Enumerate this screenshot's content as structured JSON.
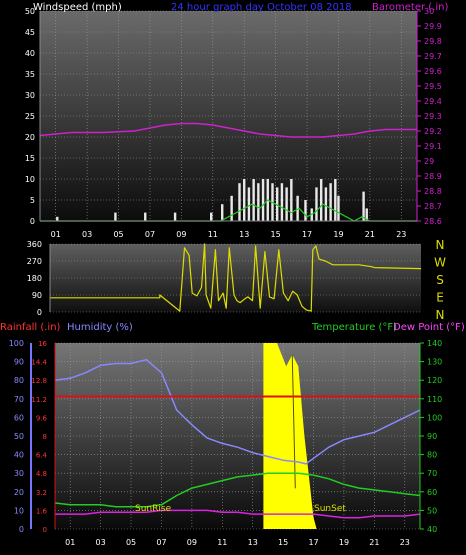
{
  "chart_data": [
    {
      "type": "line",
      "title": "24 hour graph day   October 08 2018",
      "left_axis_label": "Windspeed (mph)",
      "right_axis_label": "Barometer (.in)",
      "left_ticks": [
        "0",
        "5",
        "10",
        "15",
        "20",
        "25",
        "30",
        "35",
        "40",
        "45",
        "50"
      ],
      "right_ticks": [
        "28.6",
        "28.7",
        "28.8",
        "28.9",
        "29",
        "29.1",
        "29.2",
        "29.3",
        "29.4",
        "29.5",
        "29.6",
        "29.7",
        "29.8",
        "29.9",
        "30"
      ],
      "x_ticks": [
        "01",
        "03",
        "05",
        "07",
        "09",
        "11",
        "13",
        "15",
        "17",
        "19",
        "21",
        "23"
      ],
      "xlim": [
        0,
        24
      ],
      "ylim_left": [
        0,
        50
      ],
      "ylim_right": [
        28.6,
        30.0
      ],
      "series": [
        {
          "label": "barometer",
          "axis": "right",
          "color": "#cc22cc",
          "x": [
            0,
            2,
            4,
            6,
            8,
            9,
            10,
            11,
            12,
            13,
            14,
            15,
            16,
            17,
            18,
            19,
            20,
            21,
            22,
            23,
            24
          ],
          "y": [
            29.17,
            29.19,
            29.19,
            29.2,
            29.24,
            29.25,
            29.25,
            29.24,
            29.22,
            29.2,
            29.18,
            29.17,
            29.16,
            29.16,
            29.16,
            29.17,
            29.18,
            29.2,
            29.21,
            29.21,
            29.21
          ]
        },
        {
          "label": "windspeed_bars",
          "axis": "left",
          "color": "#e8e8e8",
          "x": [
            1.1,
            4.8,
            6.7,
            8.6,
            10.9,
            11.6,
            12.2,
            12.7,
            13.0,
            13.3,
            13.6,
            13.9,
            14.2,
            14.5,
            14.8,
            15.1,
            15.4,
            15.7,
            16.0,
            16.4,
            16.9,
            17.3,
            17.6,
            17.9,
            18.2,
            18.5,
            18.8,
            19.0,
            20.6,
            20.8
          ],
          "y": [
            1,
            2,
            2,
            2,
            2,
            4,
            6,
            9,
            10,
            8,
            10,
            9,
            10,
            10,
            9,
            8,
            9,
            8,
            10,
            6,
            5,
            3,
            8,
            10,
            8,
            9,
            10,
            6,
            7,
            3
          ]
        },
        {
          "label": "average_wind",
          "axis": "left",
          "color": "#22cc22",
          "x": [
            0,
            11.5,
            12,
            12.5,
            13,
            13.5,
            14,
            14.5,
            15,
            15.5,
            16,
            16.5,
            17,
            17.5,
            18,
            18.5,
            19,
            19.5,
            20,
            20.5,
            21,
            24
          ],
          "y": [
            0,
            0,
            1,
            2,
            3,
            4,
            3,
            5,
            4,
            3,
            2,
            3,
            1,
            2,
            4,
            3,
            2,
            1,
            0,
            1,
            0,
            0
          ]
        }
      ]
    },
    {
      "type": "line",
      "left_ticks": [
        "0",
        "90",
        "180",
        "270",
        "360"
      ],
      "compass_labels": [
        "N",
        "W",
        "S",
        "E",
        "N"
      ],
      "x_ticks": [],
      "xlim": [
        0,
        24
      ],
      "ylim": [
        0,
        360
      ],
      "series": [
        {
          "label": "wind_direction",
          "color": "#dddd00",
          "x": [
            0,
            7.1,
            7.1,
            8.4,
            8.7,
            9.0,
            9.2,
            9.5,
            9.8,
            10.0,
            10.1,
            10.4,
            10.7,
            10.9,
            11.2,
            11.4,
            11.6,
            11.9,
            12.1,
            12.3,
            12.6,
            12.8,
            13.1,
            13.3,
            13.6,
            13.9,
            14.2,
            14.5,
            14.8,
            15.1,
            15.4,
            15.7,
            16.0,
            16.3,
            16.6,
            16.9,
            17.0,
            17.2,
            17.4,
            17.8,
            18.3,
            20.0,
            20.8,
            21.0,
            24
          ],
          "y": [
            75,
            75,
            90,
            5,
            340,
            300,
            100,
            85,
            130,
            360,
            90,
            20,
            330,
            60,
            100,
            20,
            340,
            90,
            60,
            50,
            70,
            80,
            60,
            350,
            20,
            320,
            80,
            70,
            330,
            100,
            60,
            110,
            90,
            30,
            10,
            5,
            330,
            350,
            280,
            270,
            250,
            250,
            240,
            235,
            230
          ]
        }
      ]
    },
    {
      "type": "area",
      "left_label_rain": "Rainfall (.in)",
      "left_label_humidity": "Humidity (%)",
      "right_label_temp": "Temperature (°F)",
      "right_label_dew": "Dew Point (°F)",
      "humidity_ticks": [
        "0",
        "10",
        "20",
        "30",
        "40",
        "50",
        "60",
        "70",
        "80",
        "90",
        "100"
      ],
      "rain_ticks": [
        "0",
        "1.6",
        "3.2",
        "4.8",
        "6.4",
        "8",
        "9.6",
        "11.2",
        "12.8",
        "14.4",
        "16"
      ],
      "temp_ticks": [
        "40",
        "50",
        "60",
        "70",
        "80",
        "90",
        "100",
        "110",
        "120",
        "130",
        "140"
      ],
      "x_ticks": [
        "01",
        "03",
        "05",
        "07",
        "09",
        "11",
        "13",
        "15",
        "17",
        "19",
        "21",
        "23"
      ],
      "xlim": [
        0,
        24
      ],
      "annotations": {
        "sunrise": "SunRise",
        "sunset": "SunSet"
      },
      "series": [
        {
          "label": "humidity",
          "axis": "humidity",
          "color": "#8888ff",
          "x": [
            0,
            1,
            2,
            3,
            4,
            5,
            6,
            7,
            8,
            9,
            10,
            11,
            12,
            13,
            14,
            15,
            16,
            16.5,
            17,
            18,
            19,
            20,
            21,
            22,
            23,
            24
          ],
          "y": [
            80,
            81,
            84,
            88,
            89,
            89,
            91,
            84,
            64,
            56,
            49,
            46,
            44,
            41,
            39,
            37,
            36,
            35,
            38,
            44,
            48,
            50,
            52,
            56,
            60,
            64
          ]
        },
        {
          "label": "temperature",
          "axis": "temp",
          "color": "#22cc22",
          "x": [
            0,
            1,
            2,
            3,
            4,
            5,
            6,
            7,
            8,
            9,
            10,
            11,
            12,
            13,
            14,
            15,
            16,
            17,
            18,
            19,
            20,
            21,
            22,
            23,
            24
          ],
          "y": [
            54,
            53,
            53,
            53,
            52,
            52,
            52,
            53,
            58,
            62,
            64,
            66,
            68,
            69,
            70,
            70,
            70,
            69,
            67,
            64,
            62,
            61,
            60,
            59,
            58
          ]
        },
        {
          "label": "dew_point",
          "axis": "temp",
          "color": "#dd22dd",
          "x": [
            0,
            1,
            2,
            3,
            4,
            5,
            6,
            7,
            8,
            9,
            10,
            11,
            12,
            13,
            14,
            15,
            16,
            17,
            18,
            19,
            20,
            21,
            22,
            23,
            24
          ],
          "y": [
            48,
            48,
            48,
            49,
            49,
            49,
            49,
            50,
            50,
            50,
            50,
            49,
            49,
            48,
            48,
            48,
            48,
            48,
            47,
            46,
            46,
            47,
            47,
            47,
            48
          ]
        },
        {
          "label": "rainfall_rate",
          "axis": "rain",
          "color": "#ffff00",
          "x": [
            13.7,
            13.8,
            14.6,
            15.2,
            15.6,
            16.0,
            16.4,
            17.0,
            17.2
          ],
          "y": [
            16,
            16,
            16,
            14,
            15,
            14,
            8,
            1,
            0
          ]
        },
        {
          "label": "rainfall_daily",
          "axis": "rain",
          "color": "#dd1111",
          "x": [
            0,
            24
          ],
          "y": [
            11.4,
            11.4
          ]
        }
      ]
    }
  ]
}
